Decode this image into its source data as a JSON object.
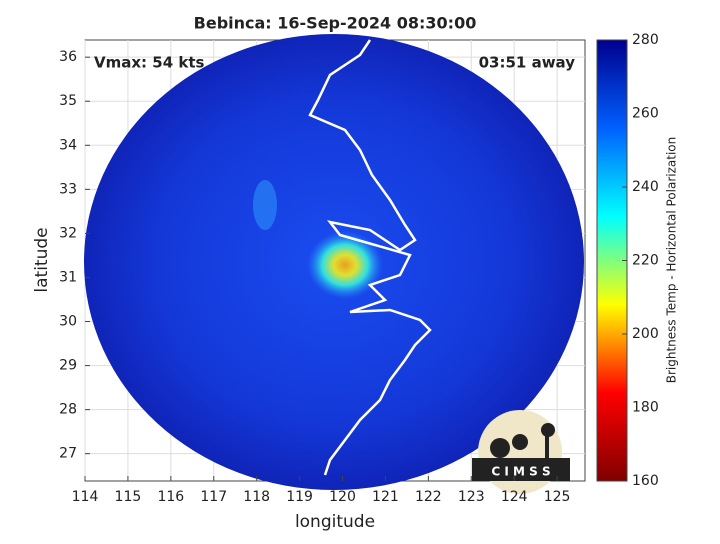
{
  "chart_data": {
    "type": "image",
    "title": "Bebinca: 16-Sep-2024 08:30:00",
    "annotations": [
      "Vmax: 54 kts",
      "03:51 away"
    ],
    "xlabel": "longitude",
    "ylabel": "latitude",
    "xlim": [
      114,
      125.65
    ],
    "ylim": [
      26.38,
      36.39
    ],
    "xticks": [
      114,
      115,
      116,
      117,
      118,
      119,
      120,
      121,
      122,
      123,
      124,
      125
    ],
    "yticks": [
      27,
      28,
      29,
      30,
      31,
      32,
      33,
      34,
      35,
      36
    ],
    "grid": true,
    "colorbar": {
      "label": "Brightness Temp - Horizontal Polarization",
      "lim": [
        160,
        280
      ],
      "ticks": [
        160,
        180,
        200,
        220,
        240,
        260,
        280
      ],
      "colors": [
        "#800000",
        "#ff0000",
        "#ffff00",
        "#00ffff",
        "#0060ff",
        "#00008f"
      ]
    },
    "logo_text": "C I M S S"
  }
}
